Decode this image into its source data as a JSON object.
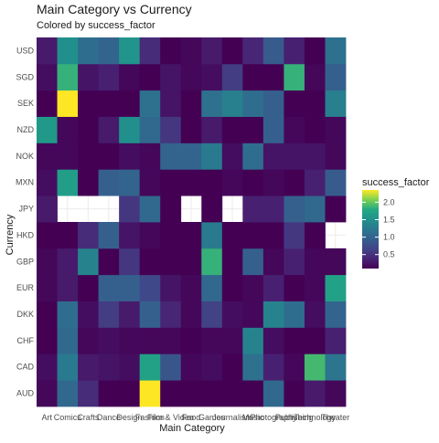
{
  "chart_data": {
    "type": "heatmap",
    "title": "Main Category vs Currency",
    "subtitle": "Colored by success_factor",
    "xlabel": "Main Category",
    "ylabel": "Currency",
    "x_categories": [
      "Art",
      "Comics",
      "Crafts",
      "Dance",
      "Design",
      "Fashion",
      "Film & Video",
      "Food",
      "Games",
      "Journalism",
      "Music",
      "Photography",
      "Publishing",
      "Technology",
      "Theater"
    ],
    "y_categories": [
      "AUD",
      "CAD",
      "CHF",
      "DKK",
      "EUR",
      "GBP",
      "HKD",
      "JPY",
      "MXN",
      "NOK",
      "NZD",
      "SEK",
      "SGD",
      "USD"
    ],
    "legend": {
      "title": "success_factor",
      "placement": "right",
      "range": [
        0.1,
        2.35
      ],
      "ticks": [
        0.5,
        1.0,
        1.5,
        2.0
      ],
      "tick_labels": [
        "0.5",
        "1.0",
        "1.5",
        "2.0"
      ]
    },
    "grid": true,
    "values": [
      [
        0.15,
        1.05,
        0.45,
        0.1,
        0.1,
        2.35,
        0.1,
        0.1,
        0.1,
        0.1,
        0.1,
        1.05,
        0.1,
        0.3,
        0.15
      ],
      [
        0.2,
        1.25,
        0.3,
        0.25,
        0.2,
        1.7,
        0.85,
        0.15,
        0.2,
        0.1,
        1.15,
        0.35,
        0.15,
        1.9,
        1.2
      ],
      [
        0.1,
        1.05,
        0.15,
        0.2,
        0.15,
        0.15,
        0.15,
        0.1,
        0.15,
        0.15,
        1.35,
        0.2,
        0.1,
        0.1,
        0.35
      ],
      [
        0.1,
        1.1,
        0.2,
        0.6,
        0.3,
        0.95,
        0.4,
        0.15,
        0.65,
        0.2,
        0.15,
        1.35,
        1.1,
        0.2,
        1.0
      ],
      [
        0.15,
        0.3,
        0.1,
        0.95,
        0.95,
        0.7,
        0.25,
        0.15,
        1.05,
        0.1,
        0.15,
        0.35,
        0.1,
        0.15,
        1.7
      ],
      [
        0.15,
        0.3,
        1.35,
        0.1,
        0.55,
        0.1,
        0.1,
        0.1,
        1.85,
        0.1,
        0.95,
        0.15,
        0.35,
        0.15,
        0.15
      ],
      [
        0.1,
        0.1,
        0.45,
        0.95,
        0.25,
        0.15,
        0.1,
        0.1,
        1.25,
        0.1,
        0.1,
        0.1,
        0.55,
        0.1,
        null
      ],
      [
        0.3,
        null,
        null,
        null,
        0.55,
        1.05,
        0.1,
        null,
        0.1,
        null,
        0.35,
        0.35,
        0.95,
        1.05,
        0.1
      ],
      [
        0.2,
        1.65,
        0.1,
        0.95,
        1.0,
        0.15,
        0.1,
        0.1,
        0.1,
        0.15,
        0.1,
        0.15,
        0.1,
        0.35,
        0.9
      ],
      [
        0.15,
        0.15,
        0.1,
        0.1,
        0.2,
        0.15,
        1.0,
        1.0,
        1.25,
        0.2,
        1.1,
        0.25,
        0.25,
        0.25,
        0.15
      ],
      [
        1.6,
        0.15,
        0.1,
        0.3,
        1.5,
        1.05,
        0.55,
        0.1,
        0.3,
        0.1,
        0.1,
        0.95,
        0.15,
        0.1,
        0.15
      ],
      [
        0.1,
        2.35,
        0.1,
        0.1,
        0.1,
        1.15,
        0.25,
        0.1,
        1.15,
        1.3,
        1.1,
        0.95,
        0.1,
        0.1,
        1.3
      ],
      [
        0.2,
        1.85,
        0.25,
        0.35,
        0.15,
        0.1,
        0.25,
        0.15,
        0.2,
        0.6,
        0.1,
        0.1,
        1.85,
        0.15,
        0.95
      ],
      [
        0.3,
        1.5,
        1.1,
        1.0,
        1.55,
        0.45,
        0.1,
        0.15,
        0.3,
        0.1,
        0.4,
        0.9,
        0.35,
        0.1,
        1.15
      ]
    ]
  }
}
